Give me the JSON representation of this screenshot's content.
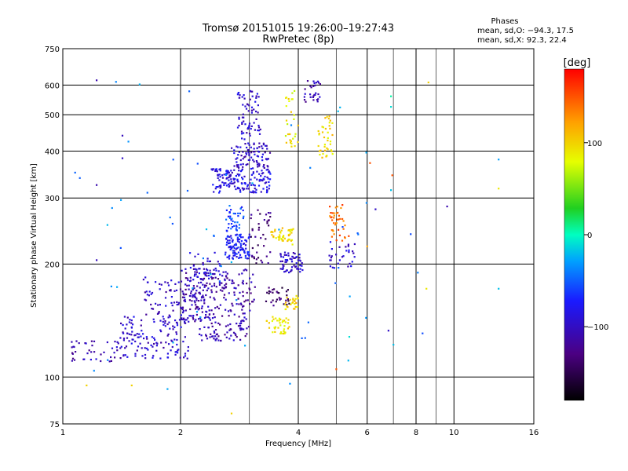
{
  "chart_data": {
    "type": "scatter",
    "title": "Tromsø 20151015 19:26:00–19:27:43",
    "subtitle": "RwPretec (8p)",
    "xlabel": "Frequency [MHz]",
    "ylabel": "Stationary phase Virtual Height [km]",
    "x_scale": "log",
    "y_scale": "log",
    "xlim": [
      1,
      16
    ],
    "ylim": [
      75,
      750
    ],
    "grid": true,
    "x_ticks": [
      1,
      2,
      4,
      6,
      8,
      10,
      16
    ],
    "x_tick_labels": [
      "1",
      "2",
      "4",
      "6",
      "8",
      "10",
      "16"
    ],
    "y_ticks": [
      75,
      100,
      200,
      300,
      400,
      500,
      600,
      750
    ],
    "y_tick_labels": [
      "75",
      "100",
      "200",
      "300",
      "400",
      "500",
      "600",
      "750"
    ],
    "colorbar": {
      "label": "[deg]",
      "min": -180,
      "max": 180,
      "ticks": [
        100,
        0,
        -100
      ],
      "tick_labels": [
        "100",
        "0",
        "−100"
      ]
    },
    "stats": {
      "header": "Phases",
      "line_o": "mean, sd,O: −94.3, 17.5",
      "line_x": "mean, sd,X: 92.3, 22.4"
    },
    "clusters": [
      {
        "x": [
          1.05,
          1.4
        ],
        "y": [
          110,
          125
        ],
        "phase": -110,
        "n": 40
      },
      {
        "x": [
          1.4,
          2.1
        ],
        "y": [
          112,
          145
        ],
        "phase": -100,
        "n": 140
      },
      {
        "x": [
          1.6,
          2.4
        ],
        "y": [
          140,
          185
        ],
        "phase": -105,
        "n": 130
      },
      {
        "x": [
          2.0,
          3.1
        ],
        "y": [
          150,
          195
        ],
        "phase": -115,
        "n": 150
      },
      {
        "x": [
          2.1,
          2.6
        ],
        "y": [
          175,
          215
        ],
        "phase": -100,
        "n": 50
      },
      {
        "x": [
          2.2,
          3.0
        ],
        "y": [
          125,
          150
        ],
        "phase": -110,
        "n": 90
      },
      {
        "x": [
          2.6,
          3.0
        ],
        "y": [
          205,
          240
        ],
        "phase": -80,
        "n": 110
      },
      {
        "x": [
          2.6,
          2.9
        ],
        "y": [
          240,
          290
        ],
        "phase": -60,
        "n": 40
      },
      {
        "x": [
          2.4,
          3.4
        ],
        "y": [
          310,
          360
        ],
        "phase": -90,
        "n": 160
      },
      {
        "x": [
          2.7,
          3.4
        ],
        "y": [
          360,
          420
        ],
        "phase": -100,
        "n": 90
      },
      {
        "x": [
          2.8,
          3.2
        ],
        "y": [
          430,
          580
        ],
        "phase": -100,
        "n": 70
      },
      {
        "x": [
          3.0,
          3.4
        ],
        "y": [
          200,
          280
        ],
        "phase": -135,
        "n": 40
      },
      {
        "x": [
          3.3,
          3.8
        ],
        "y": [
          155,
          175
        ],
        "phase": -140,
        "n": 30
      },
      {
        "x": [
          3.6,
          4.1
        ],
        "y": [
          190,
          215
        ],
        "phase": -100,
        "n": 60
      },
      {
        "x": [
          3.4,
          3.9
        ],
        "y": [
          225,
          250
        ],
        "phase": 95,
        "n": 45
      },
      {
        "x": [
          3.3,
          3.8
        ],
        "y": [
          130,
          145
        ],
        "phase": 90,
        "n": 40
      },
      {
        "x": [
          3.7,
          4.0
        ],
        "y": [
          150,
          165
        ],
        "phase": 100,
        "n": 25
      },
      {
        "x": [
          4.5,
          4.9
        ],
        "y": [
          380,
          500
        ],
        "phase": 95,
        "n": 40
      },
      {
        "x": [
          4.8,
          5.4
        ],
        "y": [
          230,
          290
        ],
        "phase": 140,
        "n": 40
      },
      {
        "x": [
          4.1,
          4.6
        ],
        "y": [
          540,
          620
        ],
        "phase": -110,
        "n": 30
      },
      {
        "x": [
          3.7,
          4.0
        ],
        "y": [
          400,
          600
        ],
        "phase": 90,
        "n": 30
      },
      {
        "x": [
          4.8,
          5.6
        ],
        "y": [
          195,
          230
        ],
        "phase": -95,
        "n": 30
      },
      {
        "x": [
          1.05,
          8.5
        ],
        "y": [
          85,
          640
        ],
        "phase": -40,
        "n": 60
      }
    ],
    "points": [
      {
        "x": 1.22,
        "y": 618,
        "phase": -110
      },
      {
        "x": 1.42,
        "y": 440,
        "phase": -105
      },
      {
        "x": 1.42,
        "y": 383,
        "phase": -100
      },
      {
        "x": 1.22,
        "y": 325,
        "phase": -110
      },
      {
        "x": 1.22,
        "y": 205,
        "phase": -105
      },
      {
        "x": 6.9,
        "y": 560,
        "phase": 5
      },
      {
        "x": 6.9,
        "y": 525,
        "phase": -10
      },
      {
        "x": 6.95,
        "y": 345,
        "phase": 150
      },
      {
        "x": 6.9,
        "y": 315,
        "phase": -20
      },
      {
        "x": 9.6,
        "y": 285,
        "phase": -110
      },
      {
        "x": 13.0,
        "y": 380,
        "phase": -30
      },
      {
        "x": 13.0,
        "y": 318,
        "phase": 90
      },
      {
        "x": 13.0,
        "y": 172,
        "phase": -20
      },
      {
        "x": 8.5,
        "y": 172,
        "phase": 90
      },
      {
        "x": 7.0,
        "y": 122,
        "phase": -20
      },
      {
        "x": 6.8,
        "y": 133,
        "phase": -100
      },
      {
        "x": 6.3,
        "y": 280,
        "phase": -100
      },
      {
        "x": 8.6,
        "y": 610,
        "phase": 100
      },
      {
        "x": 1.15,
        "y": 95,
        "phase": 100
      },
      {
        "x": 1.5,
        "y": 95,
        "phase": 100
      },
      {
        "x": 2.7,
        "y": 80,
        "phase": 100
      },
      {
        "x": 5.0,
        "y": 105,
        "phase": 150
      },
      {
        "x": 6.1,
        "y": 372,
        "phase": 150
      },
      {
        "x": 6.0,
        "y": 223,
        "phase": 120
      },
      {
        "x": 5.4,
        "y": 128,
        "phase": -10
      }
    ]
  }
}
